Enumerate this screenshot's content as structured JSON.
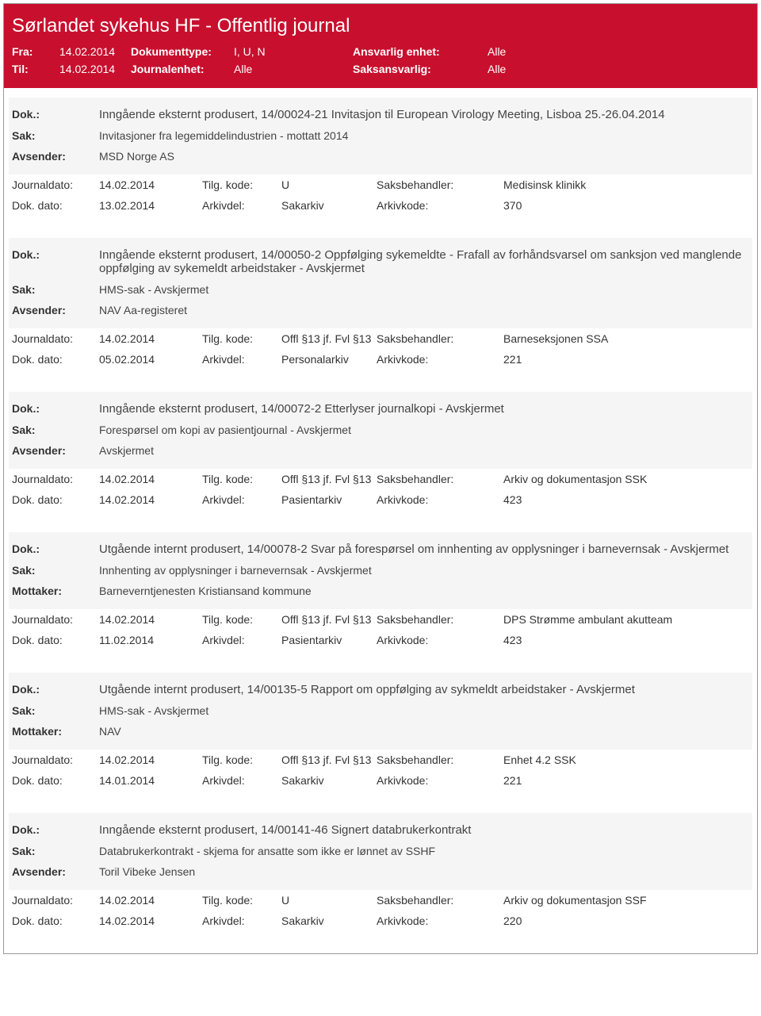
{
  "header": {
    "title": "Sørlandet sykehus HF - Offentlig journal",
    "fra_label": "Fra:",
    "fra_value": "14.02.2014",
    "til_label": "Til:",
    "til_value": "14.02.2014",
    "doktype_label": "Dokumenttype:",
    "doktype_value": "I, U, N",
    "journalenhet_label": "Journalenhet:",
    "journalenhet_value": "Alle",
    "ansvarlig_label": "Ansvarlig enhet:",
    "ansvarlig_value": "Alle",
    "saksansvarlig_label": "Saksansvarlig:",
    "saksansvarlig_value": "Alle"
  },
  "labels": {
    "dok": "Dok.:",
    "sak": "Sak:",
    "avsender": "Avsender:",
    "mottaker": "Mottaker:",
    "journaldato": "Journaldato:",
    "dokdato": "Dok. dato:",
    "tilgkode": "Tilg. kode:",
    "arkivdel": "Arkivdel:",
    "saksbehandler": "Saksbehandler:",
    "arkivkode": "Arkivkode:"
  },
  "entries": [
    {
      "dok": "Inngående eksternt produsert, 14/00024-21 Invitasjon til European Virology Meeting, Lisboa 25.-26.04.2014",
      "sak": "Invitasjoner fra legemiddelindustrien - mottatt 2014",
      "party_label": "Avsender:",
      "party": "MSD Norge AS",
      "journaldato": "14.02.2014",
      "tilgkode": "U",
      "saksbehandler": "Medisinsk klinikk",
      "dokdato": "13.02.2014",
      "arkivdel": "Sakarkiv",
      "arkivkode": "370"
    },
    {
      "dok": "Inngående eksternt produsert, 14/00050-2 Oppfølging sykemeldte - Frafall av forhåndsvarsel om sanksjon ved manglende oppfølging av sykemeldt arbeidstaker - Avskjermet",
      "sak": "HMS-sak - Avskjermet",
      "party_label": "Avsender:",
      "party": "NAV Aa-registeret",
      "journaldato": "14.02.2014",
      "tilgkode": "Offl §13 jf. Fvl §13",
      "saksbehandler": "Barneseksjonen SSA",
      "dokdato": "05.02.2014",
      "arkivdel": "Personalarkiv",
      "arkivkode": "221"
    },
    {
      "dok": "Inngående eksternt produsert, 14/00072-2 Etterlyser journalkopi - Avskjermet",
      "sak": "Forespørsel om kopi av pasientjournal - Avskjermet",
      "party_label": "Avsender:",
      "party": "Avskjermet",
      "journaldato": "14.02.2014",
      "tilgkode": "Offl §13 jf. Fvl §13",
      "saksbehandler": "Arkiv og dokumentasjon SSK",
      "dokdato": "14.02.2014",
      "arkivdel": "Pasientarkiv",
      "arkivkode": "423"
    },
    {
      "dok": "Utgående internt produsert, 14/00078-2 Svar på forespørsel om innhenting av opplysninger i barnevernsak - Avskjermet",
      "sak": "Innhenting av opplysninger i barnevernsak - Avskjermet",
      "party_label": "Mottaker:",
      "party": "Barneverntjenesten Kristiansand kommune",
      "journaldato": "14.02.2014",
      "tilgkode": "Offl §13 jf. Fvl §13",
      "saksbehandler": "DPS Strømme ambulant akutteam",
      "dokdato": "11.02.2014",
      "arkivdel": "Pasientarkiv",
      "arkivkode": "423"
    },
    {
      "dok": "Utgående internt produsert, 14/00135-5 Rapport om oppfølging av sykmeldt arbeidstaker - Avskjermet",
      "sak": "HMS-sak - Avskjermet",
      "party_label": "Mottaker:",
      "party": "NAV",
      "journaldato": "14.02.2014",
      "tilgkode": "Offl §13 jf. Fvl §13",
      "saksbehandler": "Enhet 4.2 SSK",
      "dokdato": "14.01.2014",
      "arkivdel": "Sakarkiv",
      "arkivkode": "221"
    },
    {
      "dok": "Inngående eksternt produsert, 14/00141-46 Signert databrukerkontrakt",
      "sak": "Databrukerkontrakt - skjema for ansatte som ikke er lønnet av SSHF",
      "party_label": "Avsender:",
      "party": "Toril Vibeke Jensen",
      "journaldato": "14.02.2014",
      "tilgkode": "U",
      "saksbehandler": "Arkiv og dokumentasjon SSF",
      "dokdato": "14.02.2014",
      "arkivdel": "Sakarkiv",
      "arkivkode": "220"
    }
  ]
}
